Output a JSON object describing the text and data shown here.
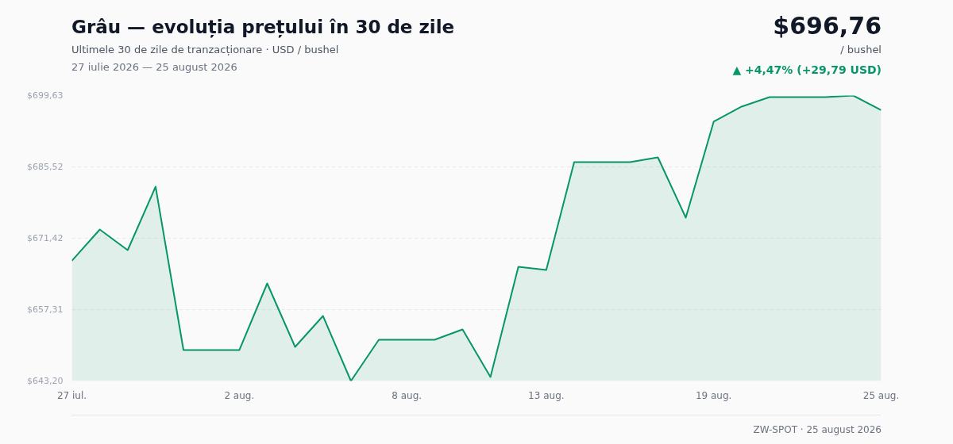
{
  "chart_data": {
    "type": "area",
    "title": "Grâu — evoluția prețului în 30 de zile",
    "subtitle": "Ultimele 30 de zile de tranzacționare · USD / bushel",
    "annotations": [
      "27 iulie 2026 — 25 august 2026",
      "$696,76",
      "/ bushel",
      "▲ +4,47% (+29,79 USD)",
      "ZW-SPOT · 25 august 2026"
    ],
    "x": [
      "2026-07-27",
      "2026-07-28",
      "2026-07-29",
      "2026-07-30",
      "2026-07-31",
      "2026-08-01",
      "2026-08-02",
      "2026-08-03",
      "2026-08-04",
      "2026-08-05",
      "2026-08-06",
      "2026-08-07",
      "2026-08-08",
      "2026-08-09",
      "2026-08-10",
      "2026-08-11",
      "2026-08-12",
      "2026-08-13",
      "2026-08-14",
      "2026-08-15",
      "2026-08-16",
      "2026-08-17",
      "2026-08-18",
      "2026-08-19",
      "2026-08-20",
      "2026-08-21",
      "2026-08-22",
      "2026-08-23",
      "2026-08-24",
      "2026-08-25"
    ],
    "series": [
      {
        "color": "#079669",
        "values": [
          666.97,
          673.14,
          669.06,
          681.6,
          649.31,
          649.31,
          649.31,
          662.48,
          649.94,
          656.05,
          643.2,
          651.35,
          651.35,
          651.35,
          653.39,
          643.98,
          665.77,
          665.14,
          686.46,
          686.46,
          686.46,
          687.4,
          675.49,
          694.46,
          697.44,
          699.32,
          699.32,
          699.32,
          699.63,
          696.76
        ]
      }
    ],
    "xlim": [
      "2026-07-27",
      "2026-08-25"
    ],
    "xticks": [
      {
        "value": "2026-07-27",
        "label": "27 iul."
      },
      {
        "value": "2026-08-02",
        "label": "2 aug."
      },
      {
        "value": "2026-08-08",
        "label": "8 aug."
      },
      {
        "value": "2026-08-13",
        "label": "13 aug."
      },
      {
        "value": "2026-08-19",
        "label": "19 aug."
      },
      {
        "value": "2026-08-25",
        "label": "25 aug."
      }
    ],
    "ylim": [
      643.2,
      699.63
    ],
    "yticks": [
      {
        "value": 643.2,
        "label": "$643,20"
      },
      {
        "value": 657.31,
        "label": "$657,31"
      },
      {
        "value": 671.42,
        "label": "$671,42"
      },
      {
        "value": 685.52,
        "label": "$685,52"
      },
      {
        "value": 699.63,
        "label": "$699,63"
      }
    ],
    "grid": "y"
  }
}
